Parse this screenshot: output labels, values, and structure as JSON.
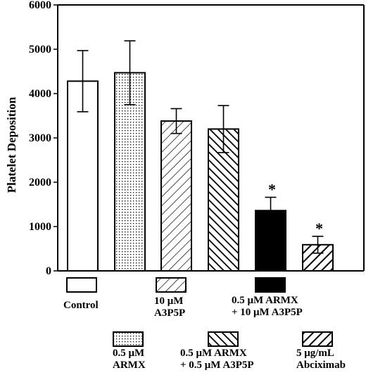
{
  "chart_data": {
    "type": "bar",
    "title": "",
    "xlabel": "",
    "ylabel": "Platelet Deposition",
    "ylim": [
      0,
      6000
    ],
    "yticks": [
      0,
      1000,
      2000,
      3000,
      4000,
      5000,
      6000
    ],
    "grid": false,
    "legend_placement": "bottom",
    "categories": [
      "Control",
      "0.5 μM ARMX",
      "10 μM A3P5P",
      "0.5 μM ARMX + 0.5 μM A3P5P",
      "0.5 μM ARMX + 10 μM A3P5P",
      "5 μg/mL Abciximab"
    ],
    "values": [
      4280,
      4470,
      3380,
      3200,
      1360,
      590
    ],
    "errors": [
      690,
      720,
      280,
      530,
      300,
      190
    ],
    "significance": [
      "",
      "",
      "",
      "",
      "*",
      "*"
    ],
    "legend": [
      {
        "line1": "Control",
        "line2": "",
        "pattern": "white"
      },
      {
        "line1": "0.5 μM",
        "line2": "ARMX",
        "pattern": "dots"
      },
      {
        "line1": "10 μM",
        "line2": "A3P5P",
        "pattern": "hatch-light"
      },
      {
        "line1": "0.5 μM ARMX",
        "line2": "+ 0.5 μM A3P5P",
        "pattern": "hatch-dense"
      },
      {
        "line1": "0.5 μM ARMX",
        "line2": "+ 10 μM A3P5P",
        "pattern": "black"
      },
      {
        "line1": "5 μg/mL",
        "line2": "Abciximab",
        "pattern": "hatch-heavy"
      }
    ]
  }
}
